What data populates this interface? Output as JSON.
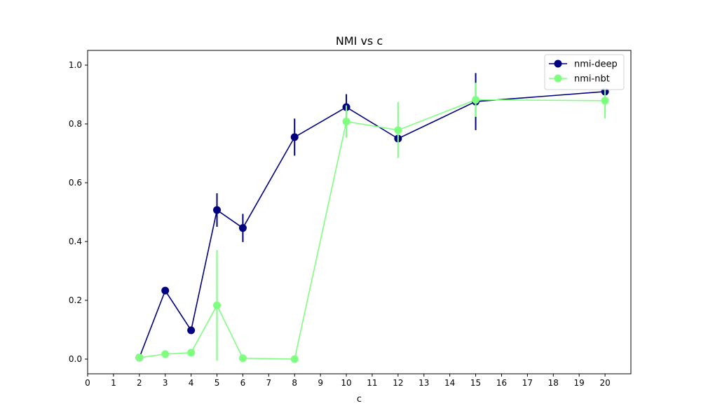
{
  "chart_data": {
    "type": "line",
    "title": "NMI vs c",
    "xlabel": "c",
    "ylabel": "",
    "xlim": [
      0,
      21
    ],
    "ylim": [
      -0.05,
      1.05
    ],
    "xticks": [
      0,
      1,
      2,
      3,
      4,
      5,
      6,
      7,
      8,
      9,
      10,
      11,
      12,
      13,
      14,
      15,
      16,
      17,
      18,
      19,
      20
    ],
    "xtick_labels": [
      "0",
      "1",
      "2",
      "3",
      "4",
      "5",
      "6",
      "7",
      "8",
      "9",
      "10",
      "11",
      "12",
      "13",
      "14",
      "15",
      "16",
      "17",
      "18",
      "19",
      "20"
    ],
    "yticks": [
      0.0,
      0.2,
      0.4,
      0.6,
      0.8,
      1.0
    ],
    "ytick_labels": [
      "0.0",
      "0.2",
      "0.4",
      "0.6",
      "0.8",
      "1.0"
    ],
    "grid": false,
    "legend_position": "top-right",
    "series": [
      {
        "name": "nmi-deep",
        "color": "#000080",
        "x": [
          2,
          3,
          4,
          5,
          6,
          8,
          10,
          12,
          15,
          20
        ],
        "y": [
          0.005,
          0.233,
          0.098,
          0.507,
          0.446,
          0.755,
          0.857,
          0.75,
          0.876,
          0.91
        ],
        "err": [
          0.0,
          0.0,
          0.0,
          0.057,
          0.048,
          0.063,
          0.044,
          0.0,
          0.097,
          0.0
        ]
      },
      {
        "name": "nmi-nbt",
        "color": "#7fff7f",
        "x": [
          2,
          3,
          4,
          5,
          6,
          8,
          10,
          12,
          15,
          20
        ],
        "y": [
          0.005,
          0.017,
          0.022,
          0.183,
          0.003,
          0.0,
          0.808,
          0.779,
          0.882,
          0.879
        ],
        "err": [
          0.0,
          0.0,
          0.0,
          0.188,
          0.0,
          0.0,
          0.055,
          0.095,
          0.058,
          0.06
        ]
      }
    ]
  }
}
